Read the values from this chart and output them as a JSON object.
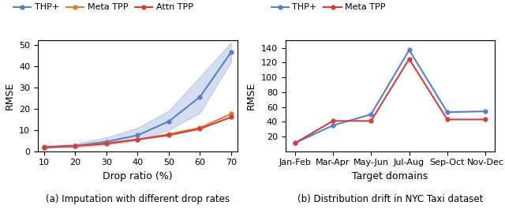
{
  "left": {
    "x": [
      10,
      20,
      30,
      40,
      50,
      60,
      70
    ],
    "thp_plus": [
      2.0,
      2.5,
      4.5,
      7.5,
      14.0,
      25.5,
      46.5
    ],
    "thp_plus_upper": [
      2.5,
      3.5,
      6.5,
      11.0,
      19.0,
      35.0,
      51.0
    ],
    "thp_plus_lower": [
      1.5,
      1.8,
      3.0,
      5.0,
      10.0,
      18.0,
      42.0
    ],
    "meta_tpp": [
      1.8,
      2.5,
      3.8,
      5.5,
      8.0,
      11.0,
      17.5
    ],
    "attn_tpp": [
      1.8,
      2.5,
      3.5,
      5.5,
      7.5,
      10.5,
      16.0
    ],
    "thp_color": "#5b7ec9",
    "meta_color": "#e07b30",
    "attn_color": "#d04040",
    "xlabel": "Drop ratio (%)",
    "ylabel": "RMSE",
    "xlim": [
      8,
      72
    ],
    "ylim": [
      0,
      52
    ],
    "yticks": [
      0,
      10,
      20,
      30,
      40,
      50
    ],
    "xticks": [
      10,
      20,
      30,
      40,
      50,
      60,
      70
    ],
    "caption": "(a) Imputation with different drop rates"
  },
  "right": {
    "x_labels": [
      "Jan-Feb",
      "Mar-Apr",
      "May-Jun",
      "Jul-Aug",
      "Sep-Oct",
      "Nov-Dec"
    ],
    "thp_plus": [
      11,
      35,
      50,
      137,
      53,
      54
    ],
    "meta_tpp": [
      11,
      41,
      41,
      125,
      43,
      43
    ],
    "thp_color": "#5b7ec9",
    "meta_color": "#d04040",
    "xlabel": "Target domains",
    "ylabel": "RMSE",
    "ylim": [
      0,
      150
    ],
    "yticks": [
      20,
      40,
      60,
      80,
      100,
      120,
      140
    ],
    "caption": "(b) Distribution drift in NYC Taxi dataset"
  },
  "legend_left": {
    "thp_label": "THP+",
    "meta_label": "Meta TPP",
    "attn_label": "Attn TPP"
  },
  "legend_right": {
    "thp_label": "THP+",
    "meta_label": "Meta TPP"
  }
}
